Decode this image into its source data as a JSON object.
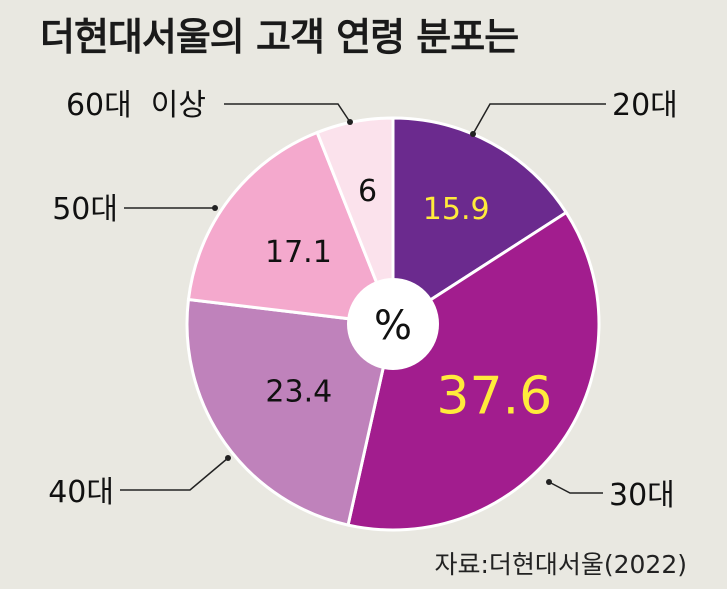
{
  "chart_data": {
    "type": "pie",
    "title": "더현대서울의 고객 연령 분포는",
    "center_label": "%",
    "source": "자료:더현대서울(2022)",
    "slices": [
      {
        "label": "20대",
        "value": 15.9,
        "value_text": "15.9",
        "color": "#6b2a8e",
        "value_color": "#ffeb3b"
      },
      {
        "label": "30대",
        "value": 37.6,
        "value_text": "37.6",
        "color": "#a21d8e",
        "value_color": "#ffeb3b"
      },
      {
        "label": "40대",
        "value": 23.4,
        "value_text": "23.4",
        "color": "#bf82bb",
        "value_color": "#111111"
      },
      {
        "label": "50대",
        "value": 17.1,
        "value_text": "17.1",
        "color": "#f4a9cd",
        "value_color": "#111111"
      },
      {
        "label": "60대  이상",
        "value": 6,
        "value_text": "6",
        "color": "#fbe2ec",
        "value_color": "#111111"
      }
    ]
  }
}
